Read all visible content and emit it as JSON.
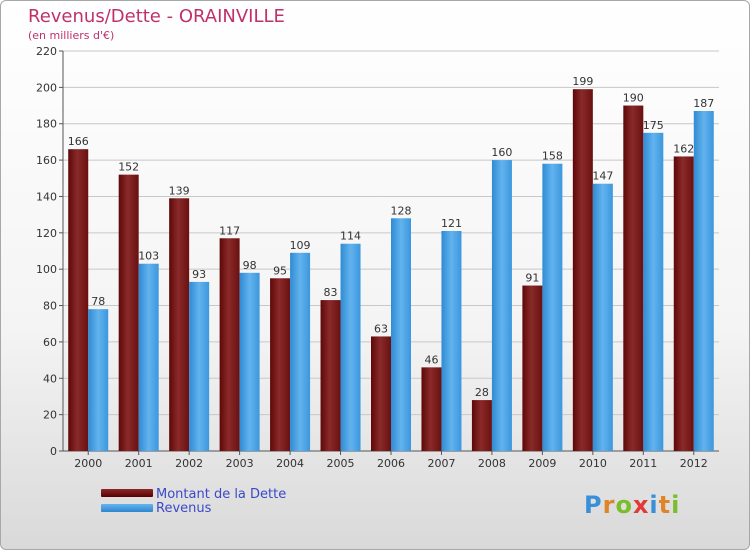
{
  "header": {
    "title": "Revenus/Dette - ORAINVILLE",
    "subtitle": "(en milliers d'€)"
  },
  "legend": {
    "debt": "Montant de la Dette",
    "revenue": "Revenus"
  },
  "logo": {
    "text": "Proxiti",
    "letter_colors": [
      "#3a8fd9",
      "#e0842a",
      "#7bbd2a",
      "#e03a3a",
      "#3a8fd9",
      "#e0842a",
      "#7bbd2a"
    ]
  },
  "colors": {
    "debt": "#7a1a1a",
    "revenue": "#4aa3e6",
    "title": "#c0306a",
    "legend_text": "#3a49c9"
  },
  "chart_data": {
    "type": "bar",
    "categories": [
      "2000",
      "2001",
      "2002",
      "2003",
      "2004",
      "2005",
      "2006",
      "2007",
      "2008",
      "2009",
      "2010",
      "2011",
      "2012"
    ],
    "series": [
      {
        "name": "Montant de la Dette",
        "values": [
          166,
          152,
          139,
          117,
          95,
          83,
          63,
          46,
          28,
          91,
          199,
          190,
          162
        ]
      },
      {
        "name": "Revenus",
        "values": [
          78,
          103,
          93,
          98,
          109,
          114,
          128,
          121,
          160,
          158,
          147,
          175,
          187
        ]
      }
    ],
    "yticks": [
      0,
      20,
      40,
      60,
      80,
      100,
      120,
      140,
      160,
      180,
      200,
      220
    ],
    "ylim": [
      0,
      220
    ],
    "grid": true,
    "legend_position": "bottom-left"
  }
}
